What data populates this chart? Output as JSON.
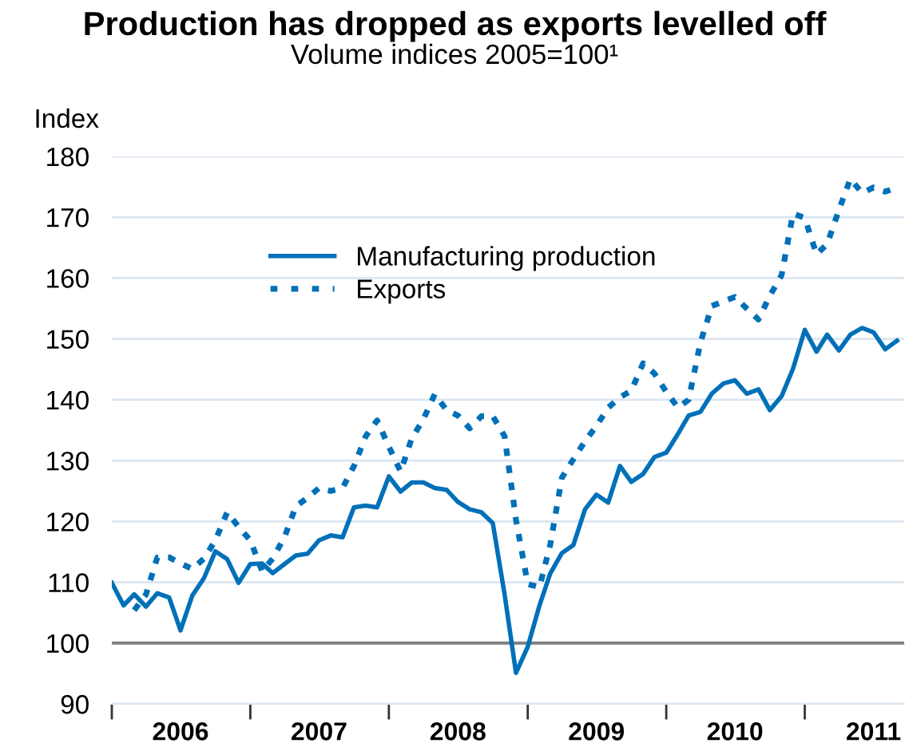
{
  "chart_data": {
    "type": "line",
    "title": "Production has dropped as exports levelled off",
    "subtitle": "Volume indices 2005=100¹",
    "ylabel": "Index",
    "x": [
      "2006-01",
      "2006-02",
      "2006-03",
      "2006-04",
      "2006-05",
      "2006-06",
      "2006-07",
      "2006-08",
      "2006-09",
      "2006-10",
      "2006-11",
      "2006-12",
      "2007-01",
      "2007-02",
      "2007-03",
      "2007-04",
      "2007-05",
      "2007-06",
      "2007-07",
      "2007-08",
      "2007-09",
      "2007-10",
      "2007-11",
      "2007-12",
      "2008-01",
      "2008-02",
      "2008-03",
      "2008-04",
      "2008-05",
      "2008-06",
      "2008-07",
      "2008-08",
      "2008-09",
      "2008-10",
      "2008-11",
      "2008-12",
      "2009-01",
      "2009-02",
      "2009-03",
      "2009-04",
      "2009-05",
      "2009-06",
      "2009-07",
      "2009-08",
      "2009-09",
      "2009-10",
      "2009-11",
      "2009-12",
      "2010-01",
      "2010-02",
      "2010-03",
      "2010-04",
      "2010-05",
      "2010-06",
      "2010-07",
      "2010-08",
      "2010-09",
      "2010-10",
      "2010-11",
      "2010-12",
      "2011-01",
      "2011-02",
      "2011-03",
      "2011-04",
      "2011-05",
      "2011-06",
      "2011-07",
      "2011-08",
      "2011-09"
    ],
    "series": [
      {
        "name": "Manufacturing production",
        "color": "#0070b8",
        "line_style": "solid",
        "values": [
          109.9,
          106.2,
          108,
          106,
          108.2,
          107.5,
          102.1,
          107.8,
          110.7,
          115.1,
          113.8,
          109.9,
          113,
          113.1,
          111.5,
          113,
          114.4,
          114.7,
          116.9,
          117.7,
          117.4,
          122.3,
          122.6,
          122.3,
          127.4,
          124.9,
          126.4,
          126.4,
          125.5,
          125.2,
          123.2,
          122,
          121.5,
          119.7,
          108,
          95.1,
          99.4,
          106.2,
          111.4,
          114.8,
          116.1,
          122,
          124.4,
          123.1,
          129.1,
          126.5,
          127.8,
          130.6,
          131.3,
          134.4,
          137.4,
          138,
          141,
          142.7,
          143.2,
          141,
          141.7,
          138.3,
          140.6,
          145.1,
          151.5,
          147.9,
          150.7,
          148.1,
          150.7,
          151.8,
          151.1,
          148.3,
          149.7
        ]
      },
      {
        "name": "Exports",
        "color": "#0070b8",
        "line_style": "dotted",
        "values": [
          null,
          null,
          105.4,
          108,
          114.1,
          114.1,
          113.1,
          112.2,
          113.9,
          116.9,
          121.5,
          119.1,
          116.9,
          111.8,
          113.9,
          117.4,
          122.5,
          123.9,
          125.5,
          125,
          125.5,
          129.1,
          134,
          136.6,
          132.3,
          128.2,
          133.6,
          136.8,
          140.9,
          138.3,
          137.4,
          135.3,
          137.3,
          137.3,
          134,
          120.3,
          109.7,
          109.2,
          116.1,
          127.2,
          130.2,
          133.2,
          135.7,
          138.7,
          140.4,
          141.5,
          146,
          144.3,
          141.3,
          138.7,
          140,
          149.4,
          155.4,
          156.2,
          156.9,
          155,
          153.2,
          157.1,
          160.5,
          170.6,
          169.9,
          163.9,
          165.6,
          171.2,
          176.3,
          174,
          174.9,
          174.2,
          174.9
        ]
      }
    ],
    "xlim": [
      "2006-01",
      "2011-09-20"
    ],
    "xticks": [
      {
        "value": "2006-01",
        "label": null
      },
      {
        "value": "2006-07",
        "label": "2006"
      },
      {
        "value": "2007-01",
        "label": null
      },
      {
        "value": "2007-07",
        "label": "2007"
      },
      {
        "value": "2008-01",
        "label": null
      },
      {
        "value": "2008-07",
        "label": "2008"
      },
      {
        "value": "2009-01",
        "label": null
      },
      {
        "value": "2009-07",
        "label": "2009"
      },
      {
        "value": "2010-01",
        "label": null
      },
      {
        "value": "2010-07",
        "label": "2010"
      },
      {
        "value": "2011-01",
        "label": null
      },
      {
        "value": "2011-07",
        "label": "2011"
      }
    ],
    "ylim": [
      90,
      180
    ],
    "yticks": [
      90,
      100,
      110,
      120,
      130,
      140,
      150,
      160,
      170,
      180
    ],
    "ref_lines": [
      {
        "axis": "y",
        "value": 100,
        "color": "#808080"
      }
    ],
    "grid": "y",
    "legend": "top left"
  }
}
